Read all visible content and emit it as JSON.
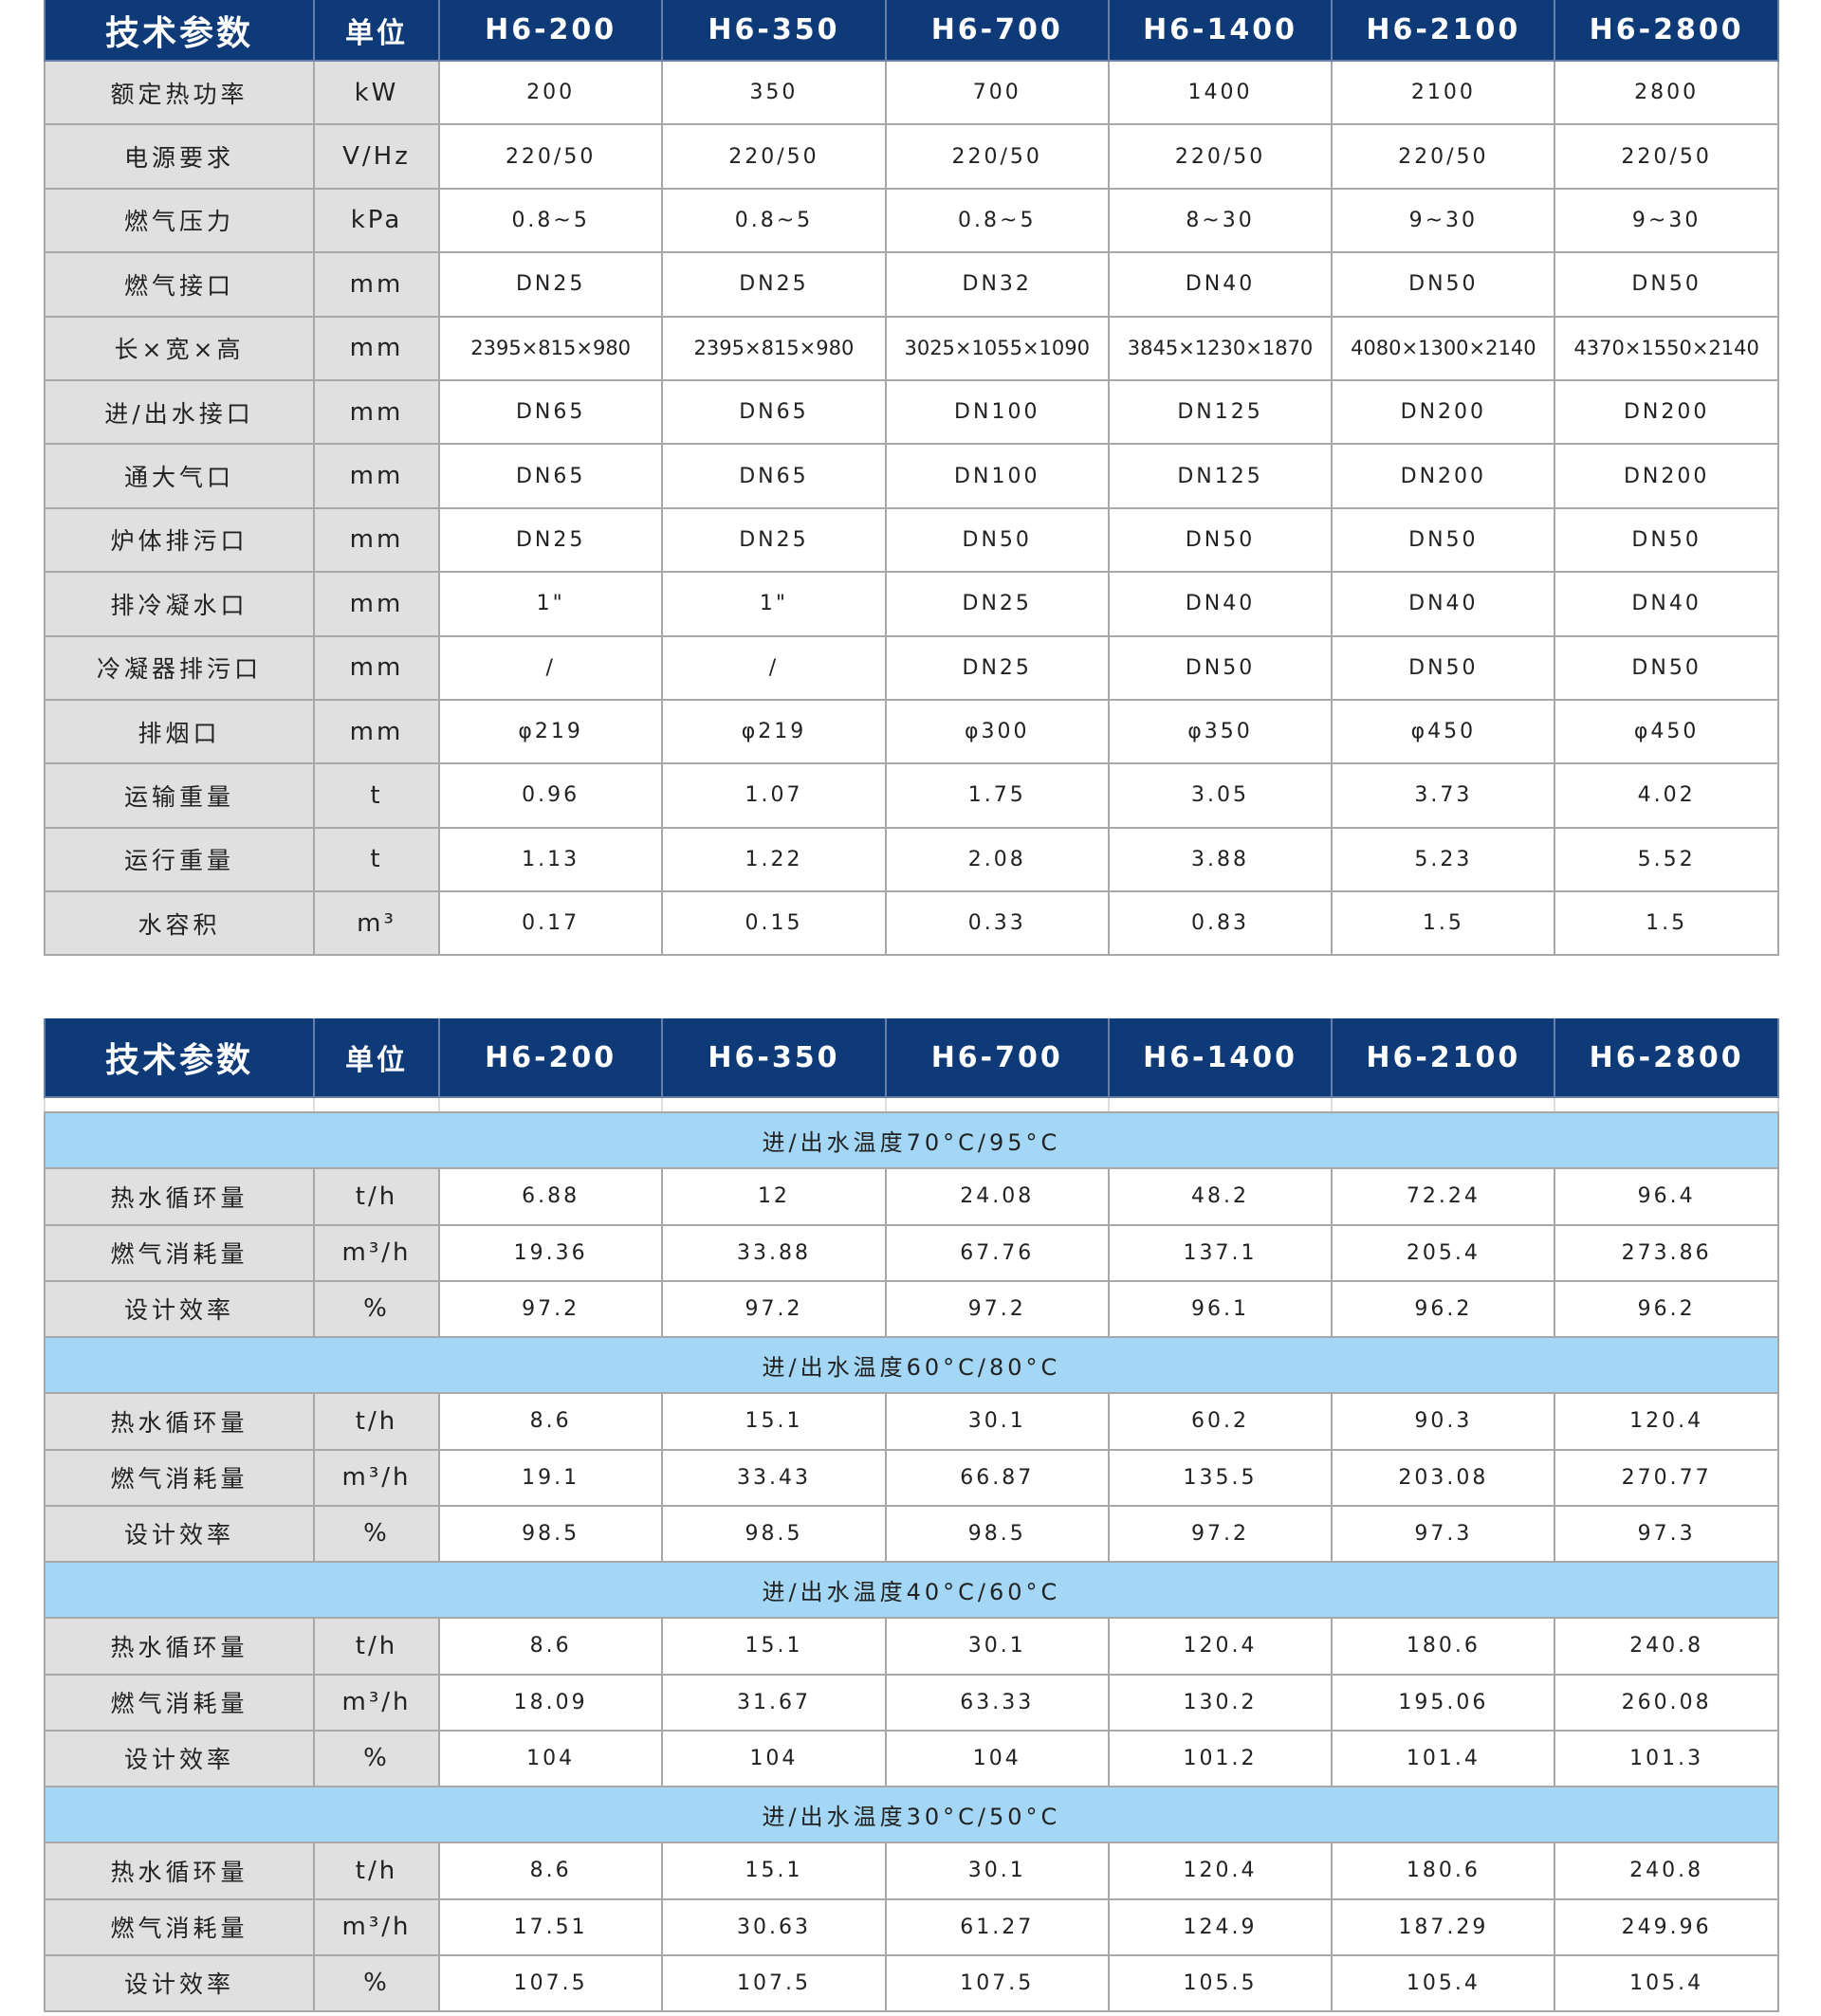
{
  "colors": {
    "header": "#0f3a78",
    "label_bg": "#e0e0e0",
    "band_bg": "#a3d7f5"
  },
  "headers": [
    "技术参数",
    "单位",
    "H6-200",
    "H6-350",
    "H6-700",
    "H6-1400",
    "H6-2100",
    "H6-2800"
  ],
  "table1": [
    {
      "label": "额定热功率",
      "unit": "kW",
      "values": [
        "200",
        "350",
        "700",
        "1400",
        "2100",
        "2800"
      ]
    },
    {
      "label": "电源要求",
      "unit": "V/Hz",
      "values": [
        "220/50",
        "220/50",
        "220/50",
        "220/50",
        "220/50",
        "220/50"
      ]
    },
    {
      "label": "燃气压力",
      "unit": "kPa",
      "values": [
        "0.8~5",
        "0.8~5",
        "0.8~5",
        "8~30",
        "9~30",
        "9~30"
      ]
    },
    {
      "label": "燃气接口",
      "unit": "mm",
      "values": [
        "DN25",
        "DN25",
        "DN32",
        "DN40",
        "DN50",
        "DN50"
      ]
    },
    {
      "label": "长×宽×高",
      "unit": "mm",
      "values": [
        "2395×815×980",
        "2395×815×980",
        "3025×1055×1090",
        "3845×1230×1870",
        "4080×1300×2140",
        "4370×1550×2140"
      ]
    },
    {
      "label": "进/出水接口",
      "unit": "mm",
      "values": [
        "DN65",
        "DN65",
        "DN100",
        "DN125",
        "DN200",
        "DN200"
      ]
    },
    {
      "label": "通大气口",
      "unit": "mm",
      "values": [
        "DN65",
        "DN65",
        "DN100",
        "DN125",
        "DN200",
        "DN200"
      ]
    },
    {
      "label": "炉体排污口",
      "unit": "mm",
      "values": [
        "DN25",
        "DN25",
        "DN50",
        "DN50",
        "DN50",
        "DN50"
      ]
    },
    {
      "label": "排冷凝水口",
      "unit": "mm",
      "values": [
        "1\"",
        "1\"",
        "DN25",
        "DN40",
        "DN40",
        "DN40"
      ]
    },
    {
      "label": "冷凝器排污口",
      "unit": "mm",
      "values": [
        "/",
        "/",
        "DN25",
        "DN50",
        "DN50",
        "DN50"
      ]
    },
    {
      "label": "排烟口",
      "unit": "mm",
      "values": [
        "φ219",
        "φ219",
        "φ300",
        "φ350",
        "φ450",
        "φ450"
      ]
    },
    {
      "label": "运输重量",
      "unit": "t",
      "values": [
        "0.96",
        "1.07",
        "1.75",
        "3.05",
        "3.73",
        "4.02"
      ]
    },
    {
      "label": "运行重量",
      "unit": "t",
      "values": [
        "1.13",
        "1.22",
        "2.08",
        "3.88",
        "5.23",
        "5.52"
      ]
    },
    {
      "label": "水容积",
      "unit": "m³",
      "values": [
        "0.17",
        "0.15",
        "0.33",
        "0.83",
        "1.5",
        "1.5"
      ]
    }
  ],
  "table2": [
    {
      "title": "进/出水温度70°C/95°C",
      "rows": [
        {
          "label": "热水循环量",
          "unit": "t/h",
          "values": [
            "6.88",
            "12",
            "24.08",
            "48.2",
            "72.24",
            "96.4"
          ]
        },
        {
          "label": "燃气消耗量",
          "unit": "m³/h",
          "values": [
            "19.36",
            "33.88",
            "67.76",
            "137.1",
            "205.4",
            "273.86"
          ]
        },
        {
          "label": "设计效率",
          "unit": "%",
          "values": [
            "97.2",
            "97.2",
            "97.2",
            "96.1",
            "96.2",
            "96.2"
          ]
        }
      ]
    },
    {
      "title": "进/出水温度60°C/80°C",
      "rows": [
        {
          "label": "热水循环量",
          "unit": "t/h",
          "values": [
            "8.6",
            "15.1",
            "30.1",
            "60.2",
            "90.3",
            "120.4"
          ]
        },
        {
          "label": "燃气消耗量",
          "unit": "m³/h",
          "values": [
            "19.1",
            "33.43",
            "66.87",
            "135.5",
            "203.08",
            "270.77"
          ]
        },
        {
          "label": "设计效率",
          "unit": "%",
          "values": [
            "98.5",
            "98.5",
            "98.5",
            "97.2",
            "97.3",
            "97.3"
          ]
        }
      ]
    },
    {
      "title": "进/出水温度40°C/60°C",
      "rows": [
        {
          "label": "热水循环量",
          "unit": "t/h",
          "values": [
            "8.6",
            "15.1",
            "30.1",
            "120.4",
            "180.6",
            "240.8"
          ]
        },
        {
          "label": "燃气消耗量",
          "unit": "m³/h",
          "values": [
            "18.09",
            "31.67",
            "63.33",
            "130.2",
            "195.06",
            "260.08"
          ]
        },
        {
          "label": "设计效率",
          "unit": "%",
          "values": [
            "104",
            "104",
            "104",
            "101.2",
            "101.4",
            "101.3"
          ]
        }
      ]
    },
    {
      "title": "进/出水温度30°C/50°C",
      "rows": [
        {
          "label": "热水循环量",
          "unit": "t/h",
          "values": [
            "8.6",
            "15.1",
            "30.1",
            "120.4",
            "180.6",
            "240.8"
          ]
        },
        {
          "label": "燃气消耗量",
          "unit": "m³/h",
          "values": [
            "17.51",
            "30.63",
            "61.27",
            "124.9",
            "187.29",
            "249.96"
          ]
        },
        {
          "label": "设计效率",
          "unit": "%",
          "values": [
            "107.5",
            "107.5",
            "107.5",
            "105.5",
            "105.4",
            "105.4"
          ]
        }
      ]
    }
  ]
}
